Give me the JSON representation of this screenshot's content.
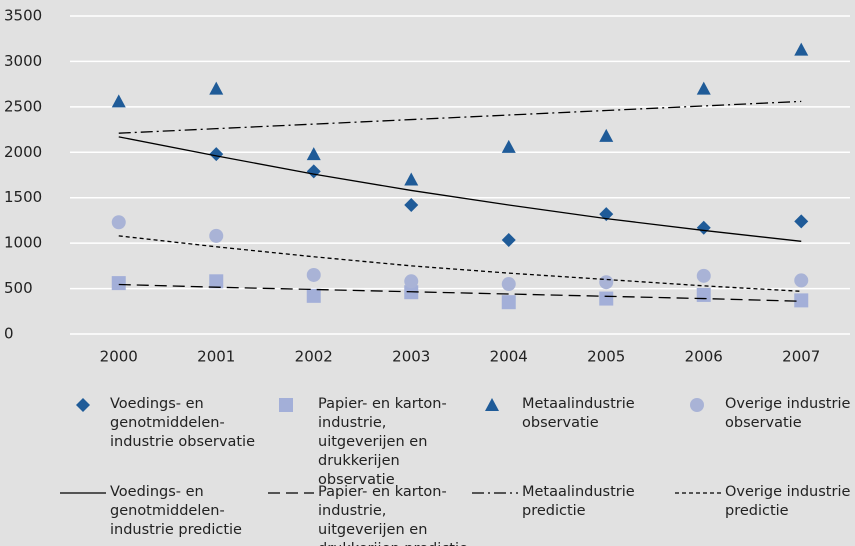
{
  "chart_data": {
    "type": "line",
    "categories": [
      "2000",
      "2001",
      "2002",
      "2003",
      "2004",
      "2005",
      "2006",
      "2007"
    ],
    "ylim": [
      0,
      3500
    ],
    "yticks": [
      0,
      500,
      1000,
      1500,
      2000,
      2500,
      3000,
      3500
    ],
    "grid": true,
    "series": [
      {
        "name": "Voedings- en genotmiddelen-industrie observatie",
        "color": "#1f5b98",
        "style": "diamond",
        "values": [
          null,
          1980,
          1790,
          1420,
          1035,
          1320,
          1170,
          1240
        ]
      },
      {
        "name": "Papier- en karton-industrie, uitgeverijen en drukkerijen observatie",
        "color": "#a3afd8",
        "style": "square",
        "values": [
          560,
          580,
          420,
          460,
          350,
          390,
          430,
          370
        ]
      },
      {
        "name": "Metaalindustrie observatie",
        "color": "#1f5b98",
        "style": "triangle",
        "values": [
          2560,
          2700,
          1980,
          1700,
          2060,
          2180,
          2700,
          3130
        ]
      },
      {
        "name": "Overige industrie observatie",
        "color": "#a9b3d6",
        "style": "circle",
        "values": [
          1230,
          1080,
          650,
          580,
          550,
          570,
          640,
          590
        ]
      },
      {
        "name": "Voedings- en genotmiddelen-industrie predictie",
        "color": "#000000",
        "style": "solid",
        "values": [
          2170,
          1960,
          1760,
          1580,
          1420,
          1270,
          1140,
          1020
        ]
      },
      {
        "name": "Papier- en karton-industrie, uitgeverijen en drukkerijen predictie",
        "color": "#000000",
        "style": "dashed",
        "values": [
          545,
          515,
          490,
          465,
          440,
          415,
          390,
          360
        ]
      },
      {
        "name": "Metaalindustrie predictie",
        "color": "#000000",
        "style": "dashdot",
        "values": [
          2210,
          2260,
          2310,
          2360,
          2410,
          2460,
          2510,
          2560
        ]
      },
      {
        "name": "Overige industrie predictie",
        "color": "#000000",
        "style": "dotted",
        "values": [
          1080,
          960,
          850,
          750,
          670,
          600,
          530,
          470
        ]
      }
    ]
  }
}
